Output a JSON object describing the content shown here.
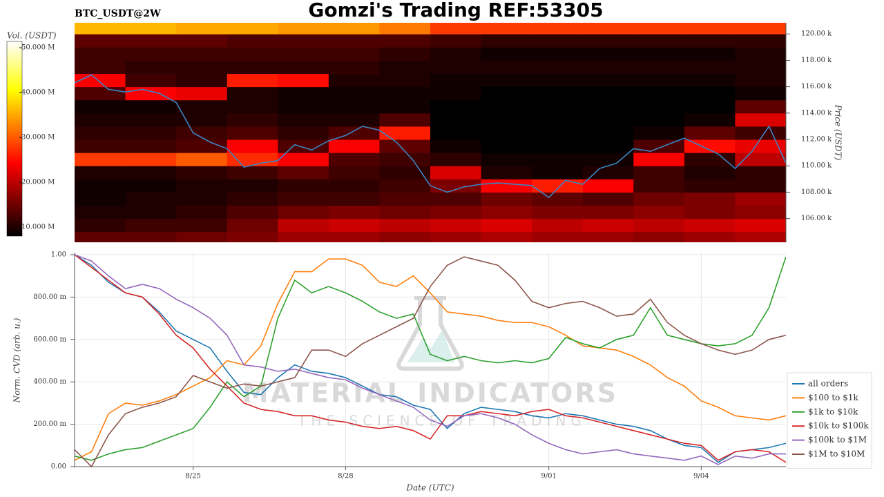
{
  "chart_data": [
    {
      "type": "heatmap",
      "title": "Gomzi's Trading REF:53305",
      "subtitle": "BTC_USDT@2W",
      "y_label": "Price (USDT)",
      "colorbar_label": "Vol. (USDT)",
      "colormap": "hot",
      "ylim": [
        104200,
        120850
      ],
      "yticks": [
        {
          "value": 106000,
          "label": "106.00 k"
        },
        {
          "value": 108000,
          "label": "108.00 k"
        },
        {
          "value": 110000,
          "label": "110.00 k"
        },
        {
          "value": 112000,
          "label": "112.00 k"
        },
        {
          "value": 114000,
          "label": "114.00 k"
        },
        {
          "value": 116000,
          "label": "116.00 k"
        },
        {
          "value": 118000,
          "label": "118.00 k"
        },
        {
          "value": 120000,
          "label": "120.00 k"
        }
      ],
      "clim": [
        8000000,
        51400000
      ],
      "cticks": [
        {
          "value": 10000000,
          "label": "10.000 M"
        },
        {
          "value": 20000000,
          "label": "20.000 M"
        },
        {
          "value": 30000000,
          "label": "30.000 M"
        },
        {
          "value": 40000000,
          "label": "40.000 M"
        },
        {
          "value": 50000000,
          "label": "50.000 M"
        }
      ],
      "heatmap": {
        "y": [
          104500,
          105500,
          106500,
          107500,
          108500,
          109500,
          110500,
          111500,
          112500,
          113500,
          114500,
          115500,
          116500,
          117500,
          118500,
          119500,
          120500
        ],
        "z": [
          [
            14000000.0,
            14000000.0,
            15000000.0,
            16000000.0,
            18000000.0,
            18000000.0,
            17000000.0,
            18000000.0,
            19000000.0,
            18000000.0,
            18000000.0,
            17000000.0,
            18000000.0,
            19000000.0
          ],
          [
            11000000.0,
            12000000.0,
            12000000.0,
            15000000.0,
            20000000.0,
            21000000.0,
            20000000.0,
            21000000.0,
            22000000.0,
            20000000.0,
            21000000.0,
            20000000.0,
            21000000.0,
            22000000.0
          ],
          [
            10000000.0,
            10000000.0,
            11000000.0,
            13000000.0,
            15000000.0,
            16000000.0,
            15000000.0,
            16000000.0,
            17000000.0,
            16000000.0,
            16000000.0,
            17000000.0,
            16000000.0,
            17000000.0
          ],
          [
            9000000.0,
            10000000.0,
            10000000.0,
            11000000.0,
            12000000.0,
            12000000.0,
            13000000.0,
            13000000.0,
            15000000.0,
            14000000.0,
            13000000.0,
            15000000.0,
            16000000.0,
            18000000.0
          ],
          [
            9000000.0,
            9000000.0,
            10000000.0,
            10000000.0,
            11000000.0,
            11000000.0,
            12000000.0,
            16000000.0,
            24000000.0,
            26000000.0,
            24000000.0,
            12000000.0,
            11000000.0,
            11000000.0
          ],
          [
            10000000.0,
            10000000.0,
            11000000.0,
            12000000.0,
            14000000.0,
            12000000.0,
            11000000.0,
            22000000.0,
            10000000.0,
            9000000.0,
            10000000.0,
            12000000.0,
            10000000.0,
            11000000.0
          ],
          [
            28000000.0,
            28000000.0,
            30000000.0,
            27000000.0,
            24000000.0,
            13000000.0,
            12000000.0,
            11000000.0,
            9000000.0,
            9000000.0,
            9000000.0,
            24000000.0,
            11000000.0,
            20000000.0
          ],
          [
            12000000.0,
            12000000.0,
            13000000.0,
            24000000.0,
            13000000.0,
            24000000.0,
            14000000.0,
            9000000.0,
            8000000.0,
            8000000.0,
            8000000.0,
            13000000.0,
            25000000.0,
            23000000.0
          ],
          [
            11000000.0,
            11000000.0,
            12000000.0,
            13000000.0,
            11000000.0,
            13000000.0,
            26000000.0,
            8000000.0,
            8000000.0,
            8000000.0,
            8000000.0,
            9000000.0,
            14000000.0,
            12000000.0
          ],
          [
            10000000.0,
            10000000.0,
            10000000.0,
            11000000.0,
            10000000.0,
            10000000.0,
            13000000.0,
            8000000.0,
            8000000.0,
            8000000.0,
            8000000.0,
            8000000.0,
            9000000.0,
            22000000.0
          ],
          [
            9000000.0,
            9000000.0,
            10000000.0,
            10000000.0,
            9000000.0,
            9000000.0,
            9000000.0,
            8000000.0,
            8000000.0,
            8000000.0,
            8000000.0,
            8000000.0,
            8000000.0,
            14000000.0
          ],
          [
            13000000.0,
            24000000.0,
            23000000.0,
            10000000.0,
            9000000.0,
            9000000.0,
            9000000.0,
            9000000.0,
            8000000.0,
            8000000.0,
            8000000.0,
            8000000.0,
            8000000.0,
            9000000.0
          ],
          [
            24000000.0,
            12000000.0,
            11000000.0,
            26000000.0,
            25000000.0,
            10000000.0,
            10000000.0,
            9000000.0,
            9000000.0,
            9000000.0,
            9000000.0,
            9000000.0,
            9000000.0,
            10000000.0
          ],
          [
            12000000.0,
            11000000.0,
            11000000.0,
            11000000.0,
            11000000.0,
            11000000.0,
            10000000.0,
            10000000.0,
            10000000.0,
            10000000.0,
            10000000.0,
            10000000.0,
            10000000.0,
            10000000.0
          ],
          [
            12000000.0,
            12000000.0,
            12000000.0,
            12000000.0,
            12000000.0,
            12000000.0,
            11000000.0,
            10000000.0,
            9000000.0,
            9000000.0,
            9000000.0,
            9000000.0,
            9000000.0,
            10000000.0
          ],
          [
            14000000.0,
            14000000.0,
            14000000.0,
            13000000.0,
            13000000.0,
            13000000.0,
            13000000.0,
            12000000.0,
            11000000.0,
            11000000.0,
            11000000.0,
            11000000.0,
            11000000.0,
            11000000.0
          ],
          [
            36000000.0,
            36000000.0,
            35000000.0,
            35000000.0,
            34000000.0,
            34000000.0,
            32000000.0,
            28000000.0,
            28000000.0,
            28000000.0,
            28000000.0,
            28000000.0,
            28000000.0,
            28000000.0
          ]
        ]
      },
      "line": {
        "color": "#3a86c6",
        "values": [
          116300,
          116900,
          115800,
          115600,
          115800,
          115500,
          114800,
          112500,
          111800,
          111300,
          109900,
          110200,
          110400,
          111600,
          111200,
          111900,
          112300,
          113000,
          112700,
          111800,
          110400,
          108500,
          108000,
          108400,
          108600,
          108700,
          108600,
          108500,
          107600,
          108900,
          108600,
          109800,
          110200,
          111300,
          111100,
          111600,
          112100,
          111500,
          110900,
          109800,
          111100,
          113000,
          110200
        ]
      }
    },
    {
      "type": "line",
      "x_label": "Date (UTC)",
      "y_label": "Norm. CVD (arb. u.)",
      "categories": [
        null,
        null,
        null,
        null,
        null,
        null,
        null,
        "8/25",
        null,
        null,
        null,
        null,
        null,
        null,
        null,
        null,
        "8/28",
        null,
        null,
        null,
        null,
        null,
        null,
        null,
        null,
        null,
        null,
        null,
        "9/01",
        null,
        null,
        null,
        null,
        null,
        null,
        null,
        null,
        "9/04",
        null,
        null,
        null,
        null,
        null
      ],
      "ylim": [
        0,
        1
      ],
      "yticks": [
        {
          "value": 0,
          "label": "0.00"
        },
        {
          "value": 0.2,
          "label": "200.00 m"
        },
        {
          "value": 0.4,
          "label": "400.00 m"
        },
        {
          "value": 0.6,
          "label": "600.00 m"
        },
        {
          "value": 0.8,
          "label": "800.00 m"
        },
        {
          "value": 1,
          "label": "1.00"
        }
      ],
      "grid": true,
      "legend": "right",
      "watermark": {
        "title": "MATERIAL INDICATORS",
        "subtitle": "THE SCIENCE OF TRADING"
      },
      "series": [
        {
          "name": "all orders",
          "color": "#1f77b4",
          "values": [
            1.0,
            0.95,
            0.87,
            0.82,
            0.8,
            0.73,
            0.64,
            0.6,
            0.56,
            0.45,
            0.35,
            0.34,
            0.42,
            0.48,
            0.45,
            0.44,
            0.42,
            0.38,
            0.34,
            0.33,
            0.29,
            0.27,
            0.18,
            0.25,
            0.28,
            0.27,
            0.26,
            0.24,
            0.23,
            0.25,
            0.24,
            0.22,
            0.2,
            0.19,
            0.17,
            0.13,
            0.1,
            0.09,
            0.02,
            0.07,
            0.08,
            0.09,
            0.11
          ]
        },
        {
          "name": "$100 to $1k",
          "color": "#ff7f0e",
          "values": [
            0.03,
            0.07,
            0.25,
            0.3,
            0.29,
            0.31,
            0.34,
            0.38,
            0.42,
            0.5,
            0.48,
            0.57,
            0.77,
            0.92,
            0.92,
            0.98,
            0.98,
            0.95,
            0.87,
            0.85,
            0.9,
            0.82,
            0.73,
            0.72,
            0.71,
            0.69,
            0.68,
            0.68,
            0.66,
            0.62,
            0.57,
            0.56,
            0.55,
            0.52,
            0.48,
            0.42,
            0.38,
            0.31,
            0.28,
            0.24,
            0.23,
            0.22,
            0.24
          ]
        },
        {
          "name": "$1k to $10k",
          "color": "#2ca02c",
          "values": [
            0.05,
            0.03,
            0.06,
            0.08,
            0.09,
            0.12,
            0.15,
            0.18,
            0.28,
            0.4,
            0.33,
            0.38,
            0.7,
            0.88,
            0.82,
            0.85,
            0.82,
            0.78,
            0.73,
            0.7,
            0.72,
            0.53,
            0.5,
            0.52,
            0.5,
            0.49,
            0.5,
            0.49,
            0.51,
            0.61,
            0.58,
            0.56,
            0.6,
            0.62,
            0.75,
            0.62,
            0.6,
            0.58,
            0.57,
            0.58,
            0.62,
            0.75,
            0.99
          ]
        },
        {
          "name": "$10k to $100k",
          "color": "#d62728",
          "values": [
            1.0,
            0.94,
            0.88,
            0.82,
            0.8,
            0.72,
            0.62,
            0.56,
            0.46,
            0.38,
            0.3,
            0.27,
            0.26,
            0.24,
            0.24,
            0.22,
            0.21,
            0.19,
            0.18,
            0.19,
            0.17,
            0.13,
            0.24,
            0.24,
            0.26,
            0.25,
            0.24,
            0.26,
            0.27,
            0.24,
            0.23,
            0.21,
            0.19,
            0.17,
            0.15,
            0.13,
            0.11,
            0.1,
            0.03,
            0.07,
            0.08,
            0.07,
            0.02
          ]
        },
        {
          "name": "$100k to $1M",
          "color": "#9467bd",
          "values": [
            1.0,
            0.97,
            0.9,
            0.84,
            0.86,
            0.84,
            0.79,
            0.75,
            0.7,
            0.62,
            0.48,
            0.47,
            0.45,
            0.46,
            0.44,
            0.42,
            0.41,
            0.37,
            0.34,
            0.31,
            0.28,
            0.22,
            0.19,
            0.24,
            0.25,
            0.23,
            0.2,
            0.15,
            0.11,
            0.08,
            0.06,
            0.07,
            0.08,
            0.06,
            0.05,
            0.04,
            0.03,
            0.05,
            0.01,
            0.05,
            0.04,
            0.06,
            0.06
          ]
        },
        {
          "name": "$1M to $10M",
          "color": "#8c564b",
          "values": [
            0.08,
            0.0,
            0.15,
            0.25,
            0.28,
            0.3,
            0.33,
            0.43,
            0.4,
            0.37,
            0.39,
            0.38,
            0.4,
            0.42,
            0.55,
            0.55,
            0.52,
            0.58,
            0.62,
            0.66,
            0.7,
            0.85,
            0.95,
            0.99,
            0.97,
            0.95,
            0.88,
            0.78,
            0.75,
            0.77,
            0.78,
            0.75,
            0.71,
            0.72,
            0.79,
            0.68,
            0.62,
            0.58,
            0.55,
            0.53,
            0.55,
            0.6,
            0.62
          ]
        }
      ]
    }
  ]
}
